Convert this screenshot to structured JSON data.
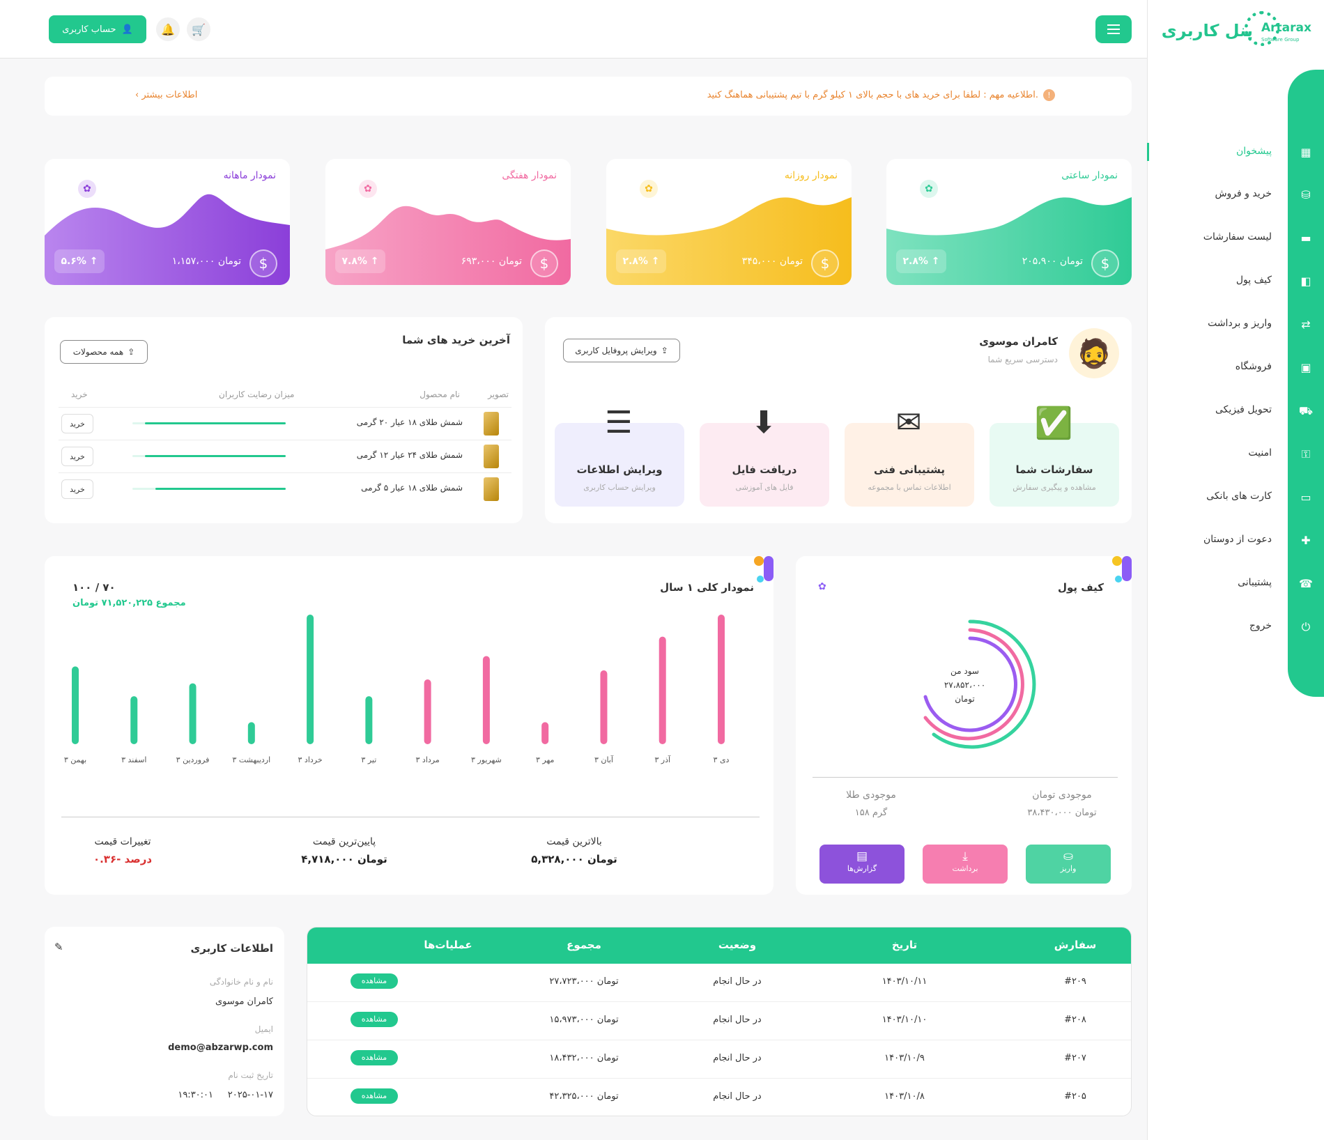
{
  "sidebar": {
    "brand": "Artarax",
    "brand_sub": "Software Group",
    "panel_title": "پنل کاربری",
    "items": [
      {
        "label": "پیشخوان",
        "icon": "dashboard-icon",
        "glyph": "▦"
      },
      {
        "label": "خرید و فروش",
        "icon": "basket-icon",
        "glyph": "⛁"
      },
      {
        "label": "لیست سفارشات",
        "icon": "folder-icon",
        "glyph": "▬"
      },
      {
        "label": "کیف پول",
        "icon": "wallet-icon",
        "glyph": "◧"
      },
      {
        "label": "واریز و برداشت",
        "icon": "money-transfer-icon",
        "glyph": "⇄"
      },
      {
        "label": "فروشگاه",
        "icon": "store-icon",
        "glyph": "▣"
      },
      {
        "label": "تحویل فیزیکی",
        "icon": "delivery-truck-icon",
        "glyph": "⛟"
      },
      {
        "label": "امنیت",
        "icon": "lock-icon",
        "glyph": "⚿"
      },
      {
        "label": "کارت های بانکی",
        "icon": "credit-card-icon",
        "glyph": "▭"
      },
      {
        "label": "دعوت از دوستان",
        "icon": "add-user-icon",
        "glyph": "✚"
      },
      {
        "label": "پشتیبانی",
        "icon": "support-icon",
        "glyph": "☎"
      },
      {
        "label": "خروج",
        "icon": "logout-icon",
        "glyph": "⏻"
      }
    ]
  },
  "header": {
    "account_label": "حساب کاربری"
  },
  "notice": {
    "text": "اطلاعیه مهم : لطفا برای خرید های با حجم بالای ۱ کیلو گرم با تیم پشتیبانی هماهنگ کنید.",
    "more": "اطلاعات بیشتر"
  },
  "stats": [
    {
      "title": "نمودار ماهانه",
      "value": "۱،۱۵۷،۰۰۰ تومان",
      "pct": "۵.۶% ↑",
      "color": "#8b3fd9",
      "light": "#b985ee"
    },
    {
      "title": "نمودار هفتگی",
      "value": "۶۹۳،۰۰۰ تومان",
      "pct": "۷.۸% ↑",
      "color": "#f16aa1",
      "light": "#f7a3c6"
    },
    {
      "title": "نمودار روزانه",
      "value": "۳۴۵،۰۰۰ تومان",
      "pct": "۲.۸% ↑",
      "color": "#f6bd1d",
      "light": "#fbd867"
    },
    {
      "title": "نمودار ساعتی",
      "value": "۲۰۵،۹۰۰ تومان",
      "pct": "۲.۸% ↑",
      "color": "#2fcb96",
      "light": "#7ee2bf"
    }
  ],
  "profile": {
    "name": "کامران موسوی",
    "subtitle": "دسترسی سریع شما",
    "edit_label": "ویرایش پروفایل کاربری",
    "tiles": [
      {
        "title": "سفارشات شما",
        "sub": "مشاهده و پیگیری سفارش",
        "bg": "#e8faf3",
        "emoji": "✅"
      },
      {
        "title": "پشتیبانی فنی",
        "sub": "اطلاعات تماس با مجموعه",
        "bg": "#fff1e6",
        "emoji": "✉"
      },
      {
        "title": "دریافت فایل",
        "sub": "فایل های آموزشی",
        "bg": "#fdebf2",
        "emoji": "⬇"
      },
      {
        "title": "ویرایش اطلاعات",
        "sub": "ویرایش حساب کاربری",
        "bg": "#efeefd",
        "emoji": "☰"
      }
    ]
  },
  "purchases": {
    "title": "آخرین خرید های شما",
    "all_label": "همه محصولات",
    "headers": {
      "image": "تصویر",
      "name": "نام محصول",
      "rating": "میزان رضایت کاربران",
      "buy": "خرید"
    },
    "rows": [
      {
        "name": "شمش طلای ۱۸ عیار ۲۰ گرمی",
        "rating": 0.92,
        "buy": "خرید"
      },
      {
        "name": "شمش طلای ۲۴ عیار ۱۲ گرمی",
        "rating": 0.92,
        "buy": "خرید"
      },
      {
        "name": "شمش طلای ۱۸ عیار ۵ گرمی",
        "rating": 0.85,
        "buy": "خرید"
      }
    ]
  },
  "yearly": {
    "title": "نمودار کلی ۱ سال",
    "total": "۱۰۰ / ۷۰",
    "sum": "مجموع ۷۱,۵۲۰,۲۲۵ تومان",
    "stats": [
      {
        "k": "بالاترین قیمت",
        "v": "۵,۳۲۸,۰۰۰ تومان",
        "color": "#222"
      },
      {
        "k": "پایین‌ترین قیمت",
        "v": "۴,۷۱۸,۰۰۰ تومان",
        "color": "#222"
      },
      {
        "k": "تغییرات قیمت",
        "v": "۰.۳۶- درصد",
        "color": "#d93030"
      }
    ]
  },
  "chart_data": {
    "type": "bar",
    "categories": [
      "دی ۳",
      "آذر ۳",
      "آبان ۳",
      "مهر ۳",
      "شهریور ۳",
      "مرداد ۳",
      "تیر ۳",
      "خرداد ۳",
      "اردیبهشت ۳",
      "فروردین ۳",
      "اسفند ۳",
      "بهمن ۳"
    ],
    "values": [
      100,
      83,
      57,
      17,
      68,
      50,
      37,
      100,
      17,
      47,
      37,
      60
    ],
    "colors": [
      "#f16aa1",
      "#f16aa1",
      "#f16aa1",
      "#f16aa1",
      "#f16aa1",
      "#f16aa1",
      "#2fcb96",
      "#2fcb96",
      "#2fcb96",
      "#2fcb96",
      "#2fcb96",
      "#2fcb96"
    ],
    "ylim": [
      0,
      100
    ],
    "title": "نمودار کلی ۱ سال",
    "grid": false
  },
  "wallet": {
    "title": "کیف پول",
    "center_label": "سود من",
    "center_value": "۲۷،۸۵۲،۰۰۰",
    "center_unit": "تومان",
    "toman_label": "موجودی تومان",
    "toman_value": "۳۸،۴۳۰،۰۰۰ تومان",
    "gold_label": "موجودی طلا",
    "gold_value": "۱۵۸ گرم",
    "buttons": [
      {
        "label": "واریز",
        "color": "#4fd3a3",
        "icon": "deposit-icon",
        "glyph": "⛀"
      },
      {
        "label": "برداشت",
        "color": "#f67eb0",
        "icon": "withdraw-icon",
        "glyph": "⤓"
      },
      {
        "label": "گزارش‌ها",
        "color": "#8d52db",
        "icon": "report-icon",
        "glyph": "▤"
      }
    ]
  },
  "userinfo": {
    "title": "اطلاعات کاربری",
    "name_label": "نام و نام خانوادگی",
    "name": "کامران موسوی",
    "email_label": "ایمیل",
    "email": "demo@abzarwp.com",
    "reg_label": "تاریخ ثبت نام",
    "reg_date": "۲۰۲۵-۰۱-۱۷",
    "reg_time": "۱۹:۳۰:۰۱"
  },
  "orders": {
    "headers": [
      "سفارش",
      "تاریخ",
      "وضعیت",
      "مجموع",
      "عملیات‌ها"
    ],
    "view_label": "مشاهده",
    "rows": [
      {
        "id": "#۲۰۹",
        "date": "۱۴۰۳/۱۰/۱۱",
        "status": "در حال انجام",
        "total": "۲۷،۷۲۳،۰۰۰ تومان"
      },
      {
        "id": "#۲۰۸",
        "date": "۱۴۰۳/۱۰/۱۰",
        "status": "در حال انجام",
        "total": "۱۵،۹۷۳،۰۰۰ تومان"
      },
      {
        "id": "#۲۰۷",
        "date": "۱۴۰۳/۱۰/۹",
        "status": "در حال انجام",
        "total": "۱۸،۴۳۲،۰۰۰ تومان"
      },
      {
        "id": "#۲۰۵",
        "date": "۱۴۰۳/۱۰/۸",
        "status": "در حال انجام",
        "total": "۴۲،۳۲۵،۰۰۰ تومان"
      }
    ]
  }
}
